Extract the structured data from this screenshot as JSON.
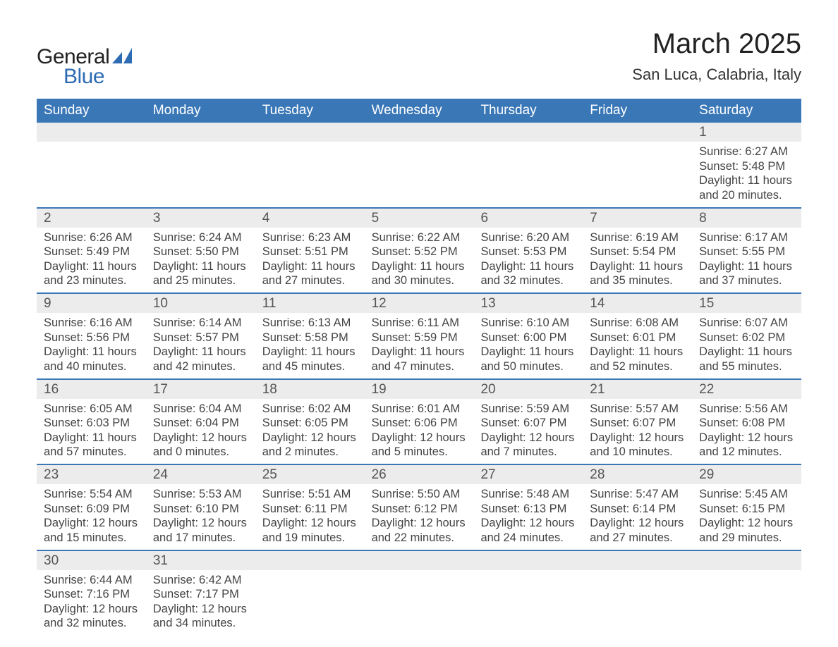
{
  "brand": {
    "text_general": "General",
    "text_blue": "Blue",
    "icon_color": "#2d6bb3",
    "text_color_general": "#222222",
    "text_color_blue": "#2d6bb3"
  },
  "header": {
    "title": "March 2025",
    "subtitle": "San Luca, Calabria, Italy",
    "title_fontsize": 40,
    "subtitle_fontsize": 22,
    "title_color": "#222222"
  },
  "calendar": {
    "header_bg": "#3a77b7",
    "header_text_color": "#ffffff",
    "daynum_band_bg": "#ececec",
    "daynum_color": "#555555",
    "body_text_color": "#444444",
    "week_border_color": "#3a77b7",
    "day_headers": [
      "Sunday",
      "Monday",
      "Tuesday",
      "Wednesday",
      "Thursday",
      "Friday",
      "Saturday"
    ],
    "labels": {
      "sunrise_prefix": "Sunrise: ",
      "sunset_prefix": "Sunset: ",
      "daylight_prefix": "Daylight: "
    },
    "weeks": [
      [
        {
          "blank": true
        },
        {
          "blank": true
        },
        {
          "blank": true
        },
        {
          "blank": true
        },
        {
          "blank": true
        },
        {
          "blank": true
        },
        {
          "day": "1",
          "sunrise": "6:27 AM",
          "sunset": "5:48 PM",
          "daylight": "11 hours and 20 minutes."
        }
      ],
      [
        {
          "day": "2",
          "sunrise": "6:26 AM",
          "sunset": "5:49 PM",
          "daylight": "11 hours and 23 minutes."
        },
        {
          "day": "3",
          "sunrise": "6:24 AM",
          "sunset": "5:50 PM",
          "daylight": "11 hours and 25 minutes."
        },
        {
          "day": "4",
          "sunrise": "6:23 AM",
          "sunset": "5:51 PM",
          "daylight": "11 hours and 27 minutes."
        },
        {
          "day": "5",
          "sunrise": "6:22 AM",
          "sunset": "5:52 PM",
          "daylight": "11 hours and 30 minutes."
        },
        {
          "day": "6",
          "sunrise": "6:20 AM",
          "sunset": "5:53 PM",
          "daylight": "11 hours and 32 minutes."
        },
        {
          "day": "7",
          "sunrise": "6:19 AM",
          "sunset": "5:54 PM",
          "daylight": "11 hours and 35 minutes."
        },
        {
          "day": "8",
          "sunrise": "6:17 AM",
          "sunset": "5:55 PM",
          "daylight": "11 hours and 37 minutes."
        }
      ],
      [
        {
          "day": "9",
          "sunrise": "6:16 AM",
          "sunset": "5:56 PM",
          "daylight": "11 hours and 40 minutes."
        },
        {
          "day": "10",
          "sunrise": "6:14 AM",
          "sunset": "5:57 PM",
          "daylight": "11 hours and 42 minutes."
        },
        {
          "day": "11",
          "sunrise": "6:13 AM",
          "sunset": "5:58 PM",
          "daylight": "11 hours and 45 minutes."
        },
        {
          "day": "12",
          "sunrise": "6:11 AM",
          "sunset": "5:59 PM",
          "daylight": "11 hours and 47 minutes."
        },
        {
          "day": "13",
          "sunrise": "6:10 AM",
          "sunset": "6:00 PM",
          "daylight": "11 hours and 50 minutes."
        },
        {
          "day": "14",
          "sunrise": "6:08 AM",
          "sunset": "6:01 PM",
          "daylight": "11 hours and 52 minutes."
        },
        {
          "day": "15",
          "sunrise": "6:07 AM",
          "sunset": "6:02 PM",
          "daylight": "11 hours and 55 minutes."
        }
      ],
      [
        {
          "day": "16",
          "sunrise": "6:05 AM",
          "sunset": "6:03 PM",
          "daylight": "11 hours and 57 minutes."
        },
        {
          "day": "17",
          "sunrise": "6:04 AM",
          "sunset": "6:04 PM",
          "daylight": "12 hours and 0 minutes."
        },
        {
          "day": "18",
          "sunrise": "6:02 AM",
          "sunset": "6:05 PM",
          "daylight": "12 hours and 2 minutes."
        },
        {
          "day": "19",
          "sunrise": "6:01 AM",
          "sunset": "6:06 PM",
          "daylight": "12 hours and 5 minutes."
        },
        {
          "day": "20",
          "sunrise": "5:59 AM",
          "sunset": "6:07 PM",
          "daylight": "12 hours and 7 minutes."
        },
        {
          "day": "21",
          "sunrise": "5:57 AM",
          "sunset": "6:07 PM",
          "daylight": "12 hours and 10 minutes."
        },
        {
          "day": "22",
          "sunrise": "5:56 AM",
          "sunset": "6:08 PM",
          "daylight": "12 hours and 12 minutes."
        }
      ],
      [
        {
          "day": "23",
          "sunrise": "5:54 AM",
          "sunset": "6:09 PM",
          "daylight": "12 hours and 15 minutes."
        },
        {
          "day": "24",
          "sunrise": "5:53 AM",
          "sunset": "6:10 PM",
          "daylight": "12 hours and 17 minutes."
        },
        {
          "day": "25",
          "sunrise": "5:51 AM",
          "sunset": "6:11 PM",
          "daylight": "12 hours and 19 minutes."
        },
        {
          "day": "26",
          "sunrise": "5:50 AM",
          "sunset": "6:12 PM",
          "daylight": "12 hours and 22 minutes."
        },
        {
          "day": "27",
          "sunrise": "5:48 AM",
          "sunset": "6:13 PM",
          "daylight": "12 hours and 24 minutes."
        },
        {
          "day": "28",
          "sunrise": "5:47 AM",
          "sunset": "6:14 PM",
          "daylight": "12 hours and 27 minutes."
        },
        {
          "day": "29",
          "sunrise": "5:45 AM",
          "sunset": "6:15 PM",
          "daylight": "12 hours and 29 minutes."
        }
      ],
      [
        {
          "day": "30",
          "sunrise": "6:44 AM",
          "sunset": "7:16 PM",
          "daylight": "12 hours and 32 minutes."
        },
        {
          "day": "31",
          "sunrise": "6:42 AM",
          "sunset": "7:17 PM",
          "daylight": "12 hours and 34 minutes."
        },
        {
          "blank": true
        },
        {
          "blank": true
        },
        {
          "blank": true
        },
        {
          "blank": true
        },
        {
          "blank": true
        }
      ]
    ]
  }
}
